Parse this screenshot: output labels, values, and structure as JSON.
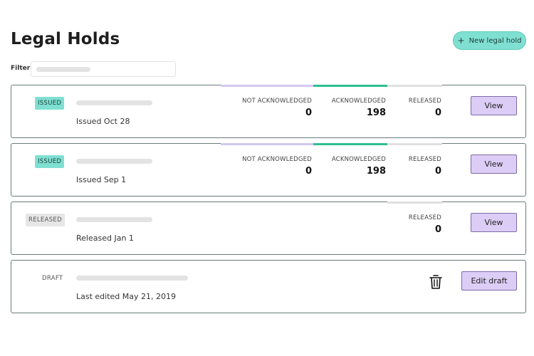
{
  "page": {
    "title": "Legal Holds",
    "new_button_label": "New legal hold",
    "filter_label": "Filter"
  },
  "holds": [
    {
      "status": "ISSUED",
      "date_text": "Issued Oct 28",
      "stats": {
        "not_ack_label": "NOT ACKNOWLEDGED",
        "not_ack": "0",
        "ack_label": "ACKNOWLEDGED",
        "ack": "198",
        "released_label": "RELEASED",
        "released": "0"
      },
      "action_label": "View"
    },
    {
      "status": "ISSUED",
      "date_text": "Issued Sep 1",
      "stats": {
        "not_ack_label": "NOT ACKNOWLEDGED",
        "not_ack": "0",
        "ack_label": "ACKNOWLEDGED",
        "ack": "198",
        "released_label": "RELEASED",
        "released": "0"
      },
      "action_label": "View"
    },
    {
      "status": "RELEASED",
      "date_text": "Released Jan 1",
      "stats": {
        "released_label": "RELEASED",
        "released": "0"
      },
      "action_label": "View"
    },
    {
      "status": "DRAFT",
      "date_text": "Last edited May 21, 2019",
      "action_label": "Edit draft"
    }
  ],
  "colors": {
    "accent_teal": "#7fe0d2",
    "acknowledged_green": "#2ebf8e",
    "not_acknowledged_purple": "#d3c8f2",
    "button_lavender": "#dccdf6"
  },
  "icons": {
    "new_button": "plus-icon",
    "delete_draft": "trash-icon"
  }
}
